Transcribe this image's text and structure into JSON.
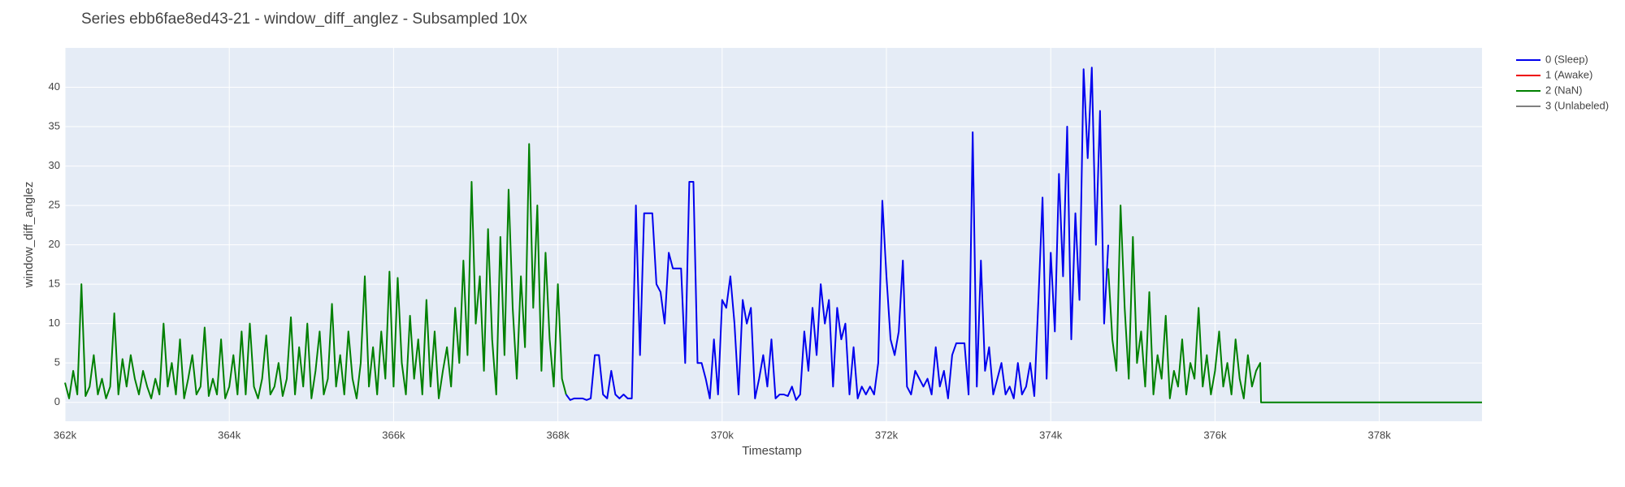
{
  "chart_data": {
    "type": "line",
    "title": "Series ebb6fae8ed43-21 - window_diff_anglez - Subsampled 10x",
    "x_label": "Timestamp",
    "y_label": "window_diff_anglez",
    "xlim": [
      362000,
      379250
    ],
    "ylim": [
      -2.4,
      45
    ],
    "xticks": [
      {
        "value": 362000,
        "label": "362k"
      },
      {
        "value": 364000,
        "label": "364k"
      },
      {
        "value": 366000,
        "label": "366k"
      },
      {
        "value": 368000,
        "label": "368k"
      },
      {
        "value": 370000,
        "label": "370k"
      },
      {
        "value": 372000,
        "label": "372k"
      },
      {
        "value": 374000,
        "label": "374k"
      },
      {
        "value": 376000,
        "label": "376k"
      },
      {
        "value": 378000,
        "label": "378k"
      }
    ],
    "yticks": [
      0,
      5,
      10,
      15,
      20,
      25,
      30,
      35,
      40
    ],
    "grid": true,
    "legend": "right",
    "series": [
      {
        "name": "0 (Sleep)",
        "color": "#0000ee",
        "x": [
          368100,
          368150,
          368200,
          368250,
          368300,
          368350,
          368400,
          368450,
          368500,
          368550,
          368600,
          368650,
          368700,
          368750,
          368800,
          368850,
          368900,
          368950,
          369000,
          369050,
          369100,
          369150,
          369200,
          369250,
          369300,
          369350,
          369400,
          369450,
          369500,
          369550,
          369600,
          369650,
          369700,
          369750,
          369800,
          369850,
          369900,
          369950,
          370000,
          370050,
          370100,
          370150,
          370200,
          370250,
          370300,
          370350,
          370400,
          370450,
          370500,
          370550,
          370600,
          370650,
          370700,
          370750,
          370800,
          370850,
          370900,
          370950,
          371000,
          371050,
          371100,
          371150,
          371200,
          371250,
          371300,
          371350,
          371400,
          371450,
          371500,
          371550,
          371600,
          371650,
          371700,
          371750,
          371800,
          371850,
          371900,
          371950,
          372000,
          372050,
          372100,
          372150,
          372200,
          372250,
          372300,
          372350,
          372400,
          372450,
          372500,
          372550,
          372600,
          372650,
          372700,
          372750,
          372800,
          372850,
          372900,
          372950,
          373000,
          373050,
          373100,
          373150,
          373200,
          373250,
          373300,
          373350,
          373400,
          373450,
          373500,
          373550,
          373600,
          373650,
          373700,
          373750,
          373800,
          373850,
          373900,
          373950,
          374000,
          374050,
          374100,
          374150,
          374200,
          374250,
          374300,
          374350,
          374400,
          374450,
          374500,
          374550,
          374600,
          374650,
          374700
        ],
        "values": [
          1,
          0.3,
          0.5,
          0.5,
          0.5,
          0.3,
          0.5,
          6,
          6,
          1,
          0.5,
          4,
          1,
          0.5,
          1,
          0.5,
          0.5,
          25,
          6,
          24,
          24,
          24,
          15,
          14,
          10,
          19,
          17,
          17,
          17,
          5,
          28,
          28,
          5,
          5,
          3,
          0.5,
          8,
          1,
          13,
          12,
          16,
          10,
          1,
          13,
          10,
          12,
          0.5,
          3,
          6,
          2,
          8,
          0.5,
          1,
          1,
          0.8,
          2,
          0.3,
          1,
          9,
          4,
          12,
          6,
          15,
          10,
          13,
          2,
          12,
          8,
          10,
          1,
          7,
          0.5,
          2,
          1,
          2,
          1,
          5,
          25.6,
          16,
          8,
          6,
          9,
          18,
          2,
          1,
          4,
          3,
          2,
          3,
          1,
          7,
          2,
          4,
          0.5,
          6,
          7.5,
          7.5,
          7.5,
          1,
          34.3,
          2,
          18,
          4,
          7,
          1,
          3,
          5,
          1,
          2,
          0.5,
          5,
          1,
          2,
          5,
          0.8,
          13,
          26,
          3,
          19,
          9,
          29,
          16,
          35,
          8,
          24,
          13,
          42.3,
          31,
          42.5,
          20,
          37,
          10,
          20
        ]
      },
      {
        "name": "1 (Awake)",
        "color": "#ee0000",
        "x": [],
        "values": []
      },
      {
        "name": "2 (NaN)",
        "color": "#008000",
        "x": [
          362000,
          362050,
          362100,
          362150,
          362200,
          362250,
          362300,
          362350,
          362400,
          362450,
          362500,
          362550,
          362600,
          362650,
          362700,
          362750,
          362800,
          362850,
          362900,
          362950,
          363000,
          363050,
          363100,
          363150,
          363200,
          363250,
          363300,
          363350,
          363400,
          363450,
          363500,
          363550,
          363600,
          363650,
          363700,
          363750,
          363800,
          363850,
          363900,
          363950,
          364000,
          364050,
          364100,
          364150,
          364200,
          364250,
          364300,
          364350,
          364400,
          364450,
          364500,
          364550,
          364600,
          364650,
          364700,
          364750,
          364800,
          364850,
          364900,
          364950,
          365000,
          365050,
          365100,
          365150,
          365200,
          365250,
          365300,
          365350,
          365400,
          365450,
          365500,
          365550,
          365600,
          365650,
          365700,
          365750,
          365800,
          365850,
          365900,
          365950,
          366000,
          366050,
          366100,
          366150,
          366200,
          366250,
          366300,
          366350,
          366400,
          366450,
          366500,
          366550,
          366600,
          366650,
          366700,
          366750,
          366800,
          366850,
          366900,
          366950,
          367000,
          367050,
          367100,
          367150,
          367200,
          367250,
          367300,
          367350,
          367400,
          367450,
          367500,
          367550,
          367600,
          367650,
          367700,
          367750,
          367800,
          367850,
          367900,
          367950,
          368000,
          368050,
          368100,
          371000,
          374700,
          374750,
          374800,
          374850,
          374900,
          374950,
          375000,
          375050,
          375100,
          375150,
          375200,
          375250,
          375300,
          375350,
          375400,
          375450,
          375500,
          375550,
          375600,
          375650,
          375700,
          375750,
          375800,
          375850,
          375900,
          375950,
          376000,
          376050,
          376100,
          376150,
          376200,
          376250,
          376300,
          376350,
          376400,
          376450,
          376500,
          376550,
          376560,
          379250
        ],
        "values": [
          2.5,
          0.5,
          4,
          1,
          15,
          0.8,
          2,
          6,
          1,
          3,
          0.5,
          2,
          11.3,
          1,
          5.5,
          2,
          6,
          3,
          1,
          4,
          2,
          0.5,
          3,
          1,
          10,
          2,
          5,
          1,
          8,
          0.5,
          3,
          6,
          1,
          2,
          9.5,
          0.8,
          3,
          1,
          8,
          0.5,
          2,
          6,
          1,
          9,
          1,
          10,
          2,
          0.5,
          3,
          8.5,
          1,
          2,
          5,
          0.8,
          3,
          10.8,
          1,
          7,
          2,
          10,
          0.5,
          4,
          9,
          1,
          3,
          12.5,
          2,
          6,
          1,
          9,
          3,
          0.5,
          5,
          16,
          2,
          7,
          1,
          9,
          3,
          16.6,
          2,
          15.8,
          5,
          1,
          11,
          3,
          8,
          1,
          13,
          2,
          9,
          0.5,
          4,
          7,
          2,
          12,
          5,
          18,
          6,
          28,
          10,
          16,
          4,
          22,
          8,
          1,
          21,
          6,
          27,
          12,
          3,
          16,
          7,
          32.8,
          12,
          25,
          4,
          19,
          8,
          2,
          15,
          3,
          1,
          null,
          17,
          8,
          4,
          25,
          12,
          3,
          21,
          5,
          9,
          2,
          14,
          1,
          6,
          3,
          11,
          0.5,
          4,
          2,
          8,
          1,
          5,
          3,
          12,
          2,
          6,
          1,
          4,
          9,
          2,
          5,
          1,
          8,
          3,
          0.5,
          6,
          2,
          4,
          5,
          0,
          0
        ]
      },
      {
        "name": "3 (Unlabeled)",
        "color": "#808080",
        "x": [],
        "values": []
      }
    ]
  }
}
